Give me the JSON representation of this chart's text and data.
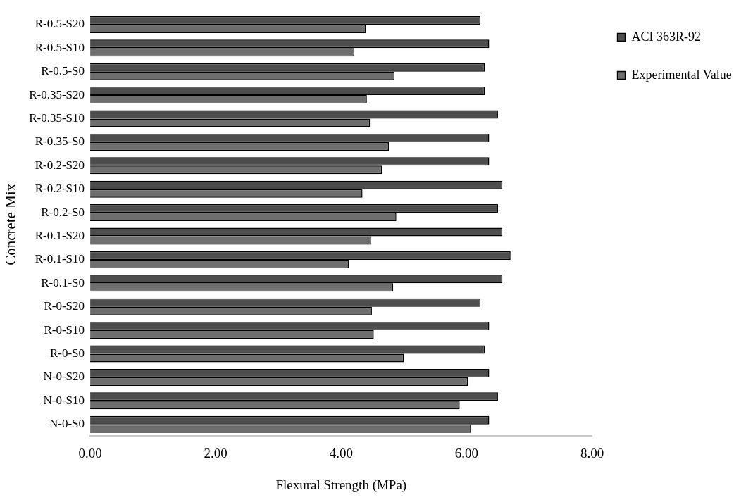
{
  "chart_data": {
    "type": "bar",
    "orientation": "horizontal",
    "xlabel": "Flexural Strength (MPa)",
    "ylabel": "Concrete Mix",
    "categories": [
      "R-0.5-S20",
      "R-0.5-S10",
      "R-0.5-S0",
      "R-0.35-S20",
      "R-0.35-S10",
      "R-0.35-S0",
      "R-0.2-S20",
      "R-0.2-S10",
      "R-0.2-S0",
      "R-0.1-S20",
      "R-0.1-S10",
      "R-0.1-S0",
      "R-0-S20",
      "R-0-S10",
      "R-0-S0",
      "N-0-S20",
      "N-0-S10",
      "N-0-S0"
    ],
    "series": [
      {
        "name": "ACI 363R-92",
        "color": "#4d4d4d",
        "values": [
          6.22,
          6.36,
          6.29,
          6.29,
          6.5,
          6.36,
          6.36,
          6.57,
          6.5,
          6.57,
          6.7,
          6.57,
          6.22,
          6.36,
          6.29,
          6.36,
          6.5,
          6.36
        ]
      },
      {
        "name": "Experimental Value",
        "color": "#6e6e6e",
        "values": [
          4.39,
          4.21,
          4.85,
          4.41,
          4.46,
          4.76,
          4.65,
          4.34,
          4.88,
          4.48,
          4.12,
          4.83,
          4.49,
          4.52,
          5.0,
          6.02,
          5.89,
          6.07
        ]
      }
    ],
    "xlim": [
      0,
      8
    ],
    "xticks": [
      {
        "value": 0,
        "label": "0.00"
      },
      {
        "value": 2,
        "label": "2.00"
      },
      {
        "value": 4,
        "label": "4.00"
      },
      {
        "value": 6,
        "label": "6.00"
      },
      {
        "value": 8,
        "label": "8.00"
      }
    ],
    "grid": false,
    "legend": "right"
  }
}
